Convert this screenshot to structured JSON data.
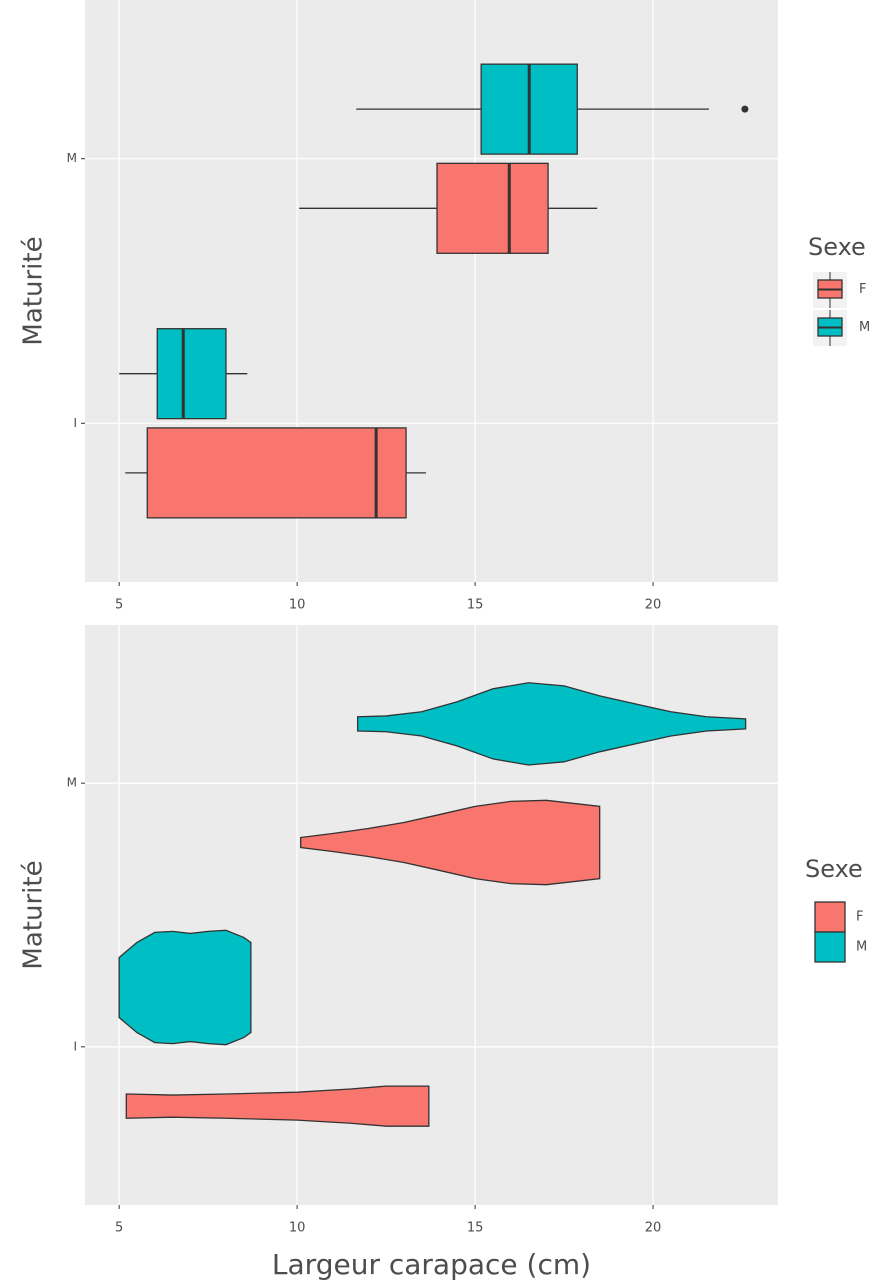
{
  "chart_data": [
    {
      "type": "box",
      "y_label": "Maturité",
      "categories": [
        "I",
        "M"
      ],
      "xlim": [
        4.04,
        23.51
      ],
      "xticks": [
        5,
        10,
        15,
        20
      ],
      "grid": true,
      "legend_title": "Sexe",
      "series": [
        {
          "name": "F",
          "color": "#F8766D",
          "whislo": [
            5.17,
            10.06
          ],
          "q1": [
            5.79,
            13.93
          ],
          "median": [
            12.22,
            15.96
          ],
          "q3": [
            13.06,
            17.05
          ],
          "whishi": [
            13.62,
            18.43
          ],
          "outliers": [
            [],
            []
          ]
        },
        {
          "name": "M",
          "color": "#00BFC4",
          "whislo": [
            5.0,
            11.66
          ],
          "q1": [
            6.07,
            15.17
          ],
          "median": [
            6.8,
            16.52
          ],
          "q3": [
            8.0,
            17.87
          ],
          "whishi": [
            8.6,
            21.57
          ],
          "outliers": [
            [],
            [
              22.58
            ]
          ]
        }
      ]
    },
    {
      "type": "violin",
      "y_label": "Maturité",
      "x_label": "Largeur carapace (cm)",
      "categories": [
        "I",
        "M"
      ],
      "xlim": [
        4.04,
        23.51
      ],
      "xticks": [
        5,
        10,
        15,
        20
      ],
      "grid": true,
      "legend_title": "Sexe",
      "series": [
        {
          "name": "F",
          "color": "#F8766D",
          "violins": [
            {
              "x": [
                5.2,
                6.5,
                8,
                10,
                11.5,
                12.5,
                13.7
              ],
              "width": [
                0.046,
                0.042,
                0.046,
                0.053,
                0.065,
                0.076,
                0.076
              ]
            },
            {
              "x": [
                10.1,
                11,
                12,
                13,
                14,
                15,
                16,
                17,
                18.5
              ],
              "width": [
                0.019,
                0.034,
                0.053,
                0.076,
                0.106,
                0.137,
                0.156,
                0.16,
                0.137
              ]
            }
          ]
        },
        {
          "name": "M",
          "color": "#00BFC4",
          "violins": [
            {
              "x": [
                5,
                5.5,
                6,
                6.5,
                7,
                7.5,
                8,
                8.5,
                8.7
              ],
              "width": [
                0.114,
                0.171,
                0.209,
                0.213,
                0.205,
                0.213,
                0.217,
                0.19,
                0.171
              ]
            },
            {
              "x": [
                11.7,
                12.5,
                13.5,
                14.5,
                15.5,
                16.5,
                17.5,
                18.5,
                19.5,
                20.5,
                21.5,
                22.6
              ],
              "width": [
                0.027,
                0.03,
                0.046,
                0.084,
                0.133,
                0.156,
                0.144,
                0.106,
                0.076,
                0.046,
                0.027,
                0.019
              ]
            }
          ]
        }
      ]
    }
  ]
}
